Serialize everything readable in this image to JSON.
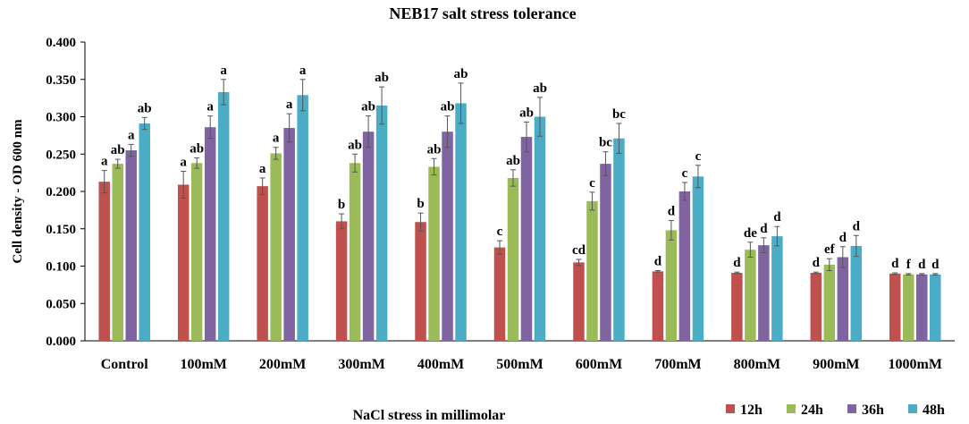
{
  "chart_data": {
    "type": "bar",
    "title": "NEB17 salt stress tolerance",
    "xlabel": "NaCl stress in millimolar",
    "ylabel": "Cell density - OD 600 nm",
    "ylim": [
      0,
      0.4
    ],
    "yticks": [
      "0.000",
      "0.050",
      "0.100",
      "0.150",
      "0.200",
      "0.250",
      "0.300",
      "0.350",
      "0.400"
    ],
    "categories": [
      "Control",
      "100mM",
      "200mM",
      "300mM",
      "400mM",
      "500mM",
      "600mM",
      "700mM",
      "800mM",
      "900mM",
      "1000mM"
    ],
    "series": [
      {
        "name": "12h",
        "color": "#C0504D",
        "values": [
          0.213,
          0.209,
          0.207,
          0.16,
          0.159,
          0.125,
          0.105,
          0.093,
          0.091,
          0.091,
          0.09
        ],
        "errors": [
          0.015,
          0.018,
          0.011,
          0.01,
          0.012,
          0.009,
          0.004,
          0.001,
          0.001,
          0.001,
          0.001
        ],
        "labels": [
          "a",
          "a",
          "a",
          "b",
          "b",
          "c",
          "cd",
          "d",
          "d",
          "d",
          "d"
        ]
      },
      {
        "name": "24h",
        "color": "#9BBB59",
        "values": [
          0.237,
          0.238,
          0.251,
          0.238,
          0.233,
          0.218,
          0.187,
          0.148,
          0.122,
          0.102,
          0.089
        ],
        "errors": [
          0.006,
          0.007,
          0.008,
          0.012,
          0.011,
          0.011,
          0.012,
          0.013,
          0.01,
          0.008,
          0.001
        ],
        "labels": [
          "ab",
          "ab",
          "a",
          "ab",
          "ab",
          "ab",
          "c",
          "d",
          "de",
          "ef",
          "f"
        ]
      },
      {
        "name": "36h",
        "color": "#8064A2",
        "values": [
          0.255,
          0.286,
          0.285,
          0.28,
          0.28,
          0.273,
          0.237,
          0.2,
          0.128,
          0.112,
          0.089
        ],
        "errors": [
          0.008,
          0.015,
          0.019,
          0.021,
          0.021,
          0.02,
          0.016,
          0.012,
          0.01,
          0.014,
          0.001
        ],
        "labels": [
          "a",
          "a",
          "a",
          "ab",
          "ab",
          "ab",
          "bc",
          "c",
          "d",
          "d",
          "d"
        ]
      },
      {
        "name": "48h",
        "color": "#4BACC6",
        "values": [
          0.291,
          0.333,
          0.329,
          0.315,
          0.318,
          0.3,
          0.271,
          0.22,
          0.14,
          0.127,
          0.089
        ],
        "errors": [
          0.008,
          0.017,
          0.021,
          0.025,
          0.027,
          0.026,
          0.02,
          0.015,
          0.013,
          0.014,
          0.001
        ],
        "labels": [
          "ab",
          "a",
          "a",
          "ab",
          "ab",
          "ab",
          "bc",
          "c",
          "d",
          "d",
          "d"
        ]
      }
    ],
    "legend": "bottom-right",
    "grid": false
  }
}
